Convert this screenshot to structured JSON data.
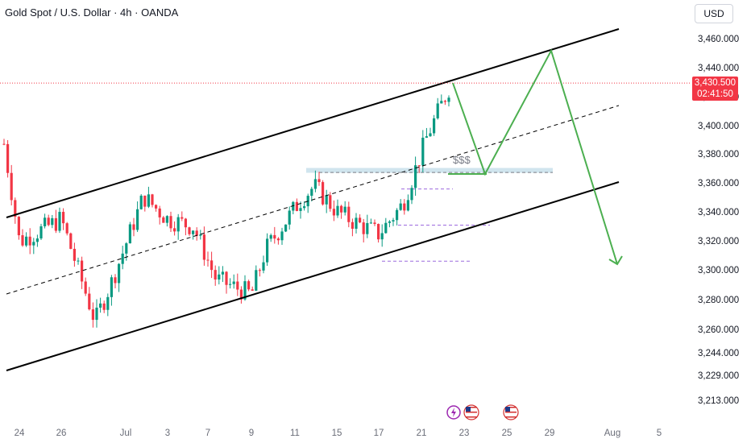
{
  "header": {
    "title": "Gold Spot / U.S. Dollar · 4h · OANDA",
    "currency": "USD"
  },
  "price_tag": {
    "price": "3,430.500",
    "countdown": "02:41:50",
    "color": "#f23645"
  },
  "colors": {
    "up": "#089981",
    "down": "#f23645",
    "projection": "#4caf50",
    "channel": "#000000",
    "zone": "#a9cfe0"
  },
  "annotation": {
    "label": "$$$"
  },
  "icons": [
    "lightning-event-icon",
    "us-flag-icon",
    "us-flag-icon"
  ],
  "chart_data": {
    "type": "candlestick",
    "y_tick_labels": [
      "3,460.000",
      "3,440.000",
      "3,420.000",
      "3,400.000",
      "3,380.000",
      "3,360.000",
      "3,340.000",
      "3,320.000",
      "3,300.000",
      "3,280.000",
      "3,260.000",
      "3,244.000",
      "3,229.000",
      "3,213.000"
    ],
    "x_tick_labels": [
      "24",
      "26",
      "Jul",
      "3",
      "7",
      "9",
      "11",
      "15",
      "17",
      "21",
      "23",
      "25",
      "29",
      "Aug",
      "5"
    ],
    "x_axis": "date (4h bars)",
    "last_price": 3430.5,
    "ohlc_trend_points": [
      {
        "date": "Jun 23",
        "close": 3390
      },
      {
        "date": "Jun 24",
        "close": 3325
      },
      {
        "date": "Jun 26",
        "close": 3340
      },
      {
        "date": "Jun 27",
        "close": 3272
      },
      {
        "date": "Jun 30",
        "close": 3300
      },
      {
        "date": "Jul 2",
        "close": 3355
      },
      {
        "date": "Jul 3",
        "close": 3340
      },
      {
        "date": "Jul 7",
        "close": 3335
      },
      {
        "date": "Jul 8",
        "close": 3300
      },
      {
        "date": "Jul 9",
        "close": 3290
      },
      {
        "date": "Jul 10",
        "close": 3320
      },
      {
        "date": "Jul 11",
        "close": 3352
      },
      {
        "date": "Jul 14",
        "close": 3362
      },
      {
        "date": "Jul 15",
        "close": 3345
      },
      {
        "date": "Jul 16",
        "close": 3338
      },
      {
        "date": "Jul 17",
        "close": 3330
      },
      {
        "date": "Jul 18",
        "close": 3350
      },
      {
        "date": "Jul 21",
        "close": 3395
      },
      {
        "date": "Jul 22",
        "close": 3430.5
      }
    ],
    "drawings": {
      "ascending_channel": true,
      "projection_path_prices": [
        3430.5,
        3370,
        3452,
        3310
      ],
      "horizontal_levels": [
        3370,
        3360,
        3336,
        3312
      ]
    },
    "grid": false
  }
}
